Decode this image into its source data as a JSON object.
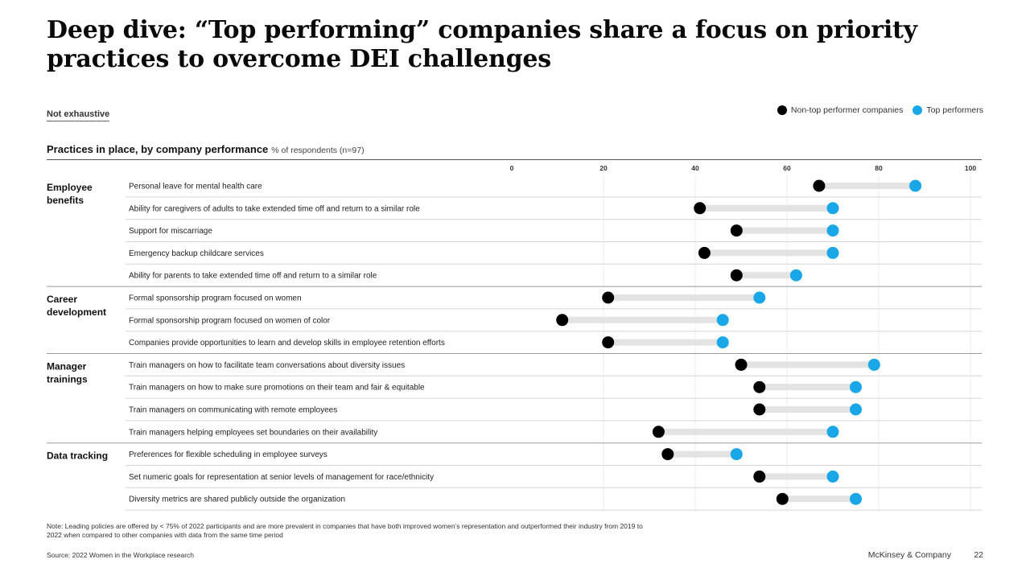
{
  "title": "Deep dive: “Top performing” companies share a focus on priority practices to overcome DEI challenges",
  "not_exhaustive": "Not exhaustive",
  "legend": {
    "non_top": "Non-top performer companies",
    "top": "Top performers"
  },
  "subtitle": "Practices in place, by company performance",
  "subtitle_unit": "% of respondents (n=97)",
  "colors": {
    "non_top": "#000000",
    "top": "#1aa7e8",
    "connector": "#e3e3e3",
    "row_rule": "#d6d6d6",
    "gridline": "#ececec"
  },
  "chart_data": {
    "type": "dumbbell",
    "xlim": [
      0,
      100
    ],
    "xticks": [
      "0",
      "20",
      "40",
      "60",
      "80",
      "100"
    ],
    "series": [
      {
        "name": "Non-top performer companies",
        "color": "#000000"
      },
      {
        "name": "Top performers",
        "color": "#1aa7e8"
      }
    ],
    "groups": [
      {
        "label": "Employee benefits",
        "label_lines": [
          "Employee",
          "benefits"
        ],
        "rows": [
          {
            "label": "Personal leave for mental health care",
            "non_top": 67,
            "top": 88
          },
          {
            "label": "Ability for caregivers of adults to take extended time off and return to a similar role",
            "non_top": 41,
            "top": 70
          },
          {
            "label": "Support for miscarriage",
            "non_top": 49,
            "top": 70
          },
          {
            "label": "Emergency backup childcare services",
            "non_top": 42,
            "top": 70
          },
          {
            "label": "Ability for parents to take extended time off and return to a similar role",
            "non_top": 49,
            "top": 62
          }
        ]
      },
      {
        "label": "Career development",
        "label_lines": [
          "Career",
          "development"
        ],
        "rows": [
          {
            "label": "Formal sponsorship program focused on women",
            "non_top": 21,
            "top": 54
          },
          {
            "label": "Formal sponsorship program focused on women of color",
            "non_top": 11,
            "top": 46
          },
          {
            "label": "Companies provide opportunities to learn and develop skills in employee retention efforts",
            "non_top": 21,
            "top": 46
          }
        ]
      },
      {
        "label": "Manager trainings",
        "label_lines": [
          "Manager",
          "trainings"
        ],
        "rows": [
          {
            "label": "Train managers on how to facilitate team conversations about diversity issues",
            "non_top": 50,
            "top": 79
          },
          {
            "label": "Train managers on how to make sure promotions on their team and fair & equitable",
            "non_top": 54,
            "top": 75
          },
          {
            "label": "Train managers on communicating with remote employees",
            "non_top": 54,
            "top": 75
          },
          {
            "label": "Train managers helping employees set boundaries on their availability",
            "non_top": 32,
            "top": 70
          }
        ]
      },
      {
        "label": "Data tracking",
        "label_lines": [
          "Data tracking"
        ],
        "rows": [
          {
            "label": "Preferences for flexible scheduling in employee surveys",
            "non_top": 34,
            "top": 49
          },
          {
            "label": "Set numeric goals for representation at senior levels of management for race/ethnicity",
            "non_top": 54,
            "top": 70
          },
          {
            "label": "Diversity metrics are shared publicly outside the organization",
            "non_top": 59,
            "top": 75
          }
        ]
      }
    ]
  },
  "note": "Note: Leading policies are offered by < 75% of 2022 participants and are more prevalent in companies that have both improved women’s representation and outperformed their industry from 2019 to 2022 when compared to other companies with data from the same time period",
  "source": "Source: 2022 Women in the Workplace research",
  "brand": "McKinsey & Company",
  "page_number": "22"
}
